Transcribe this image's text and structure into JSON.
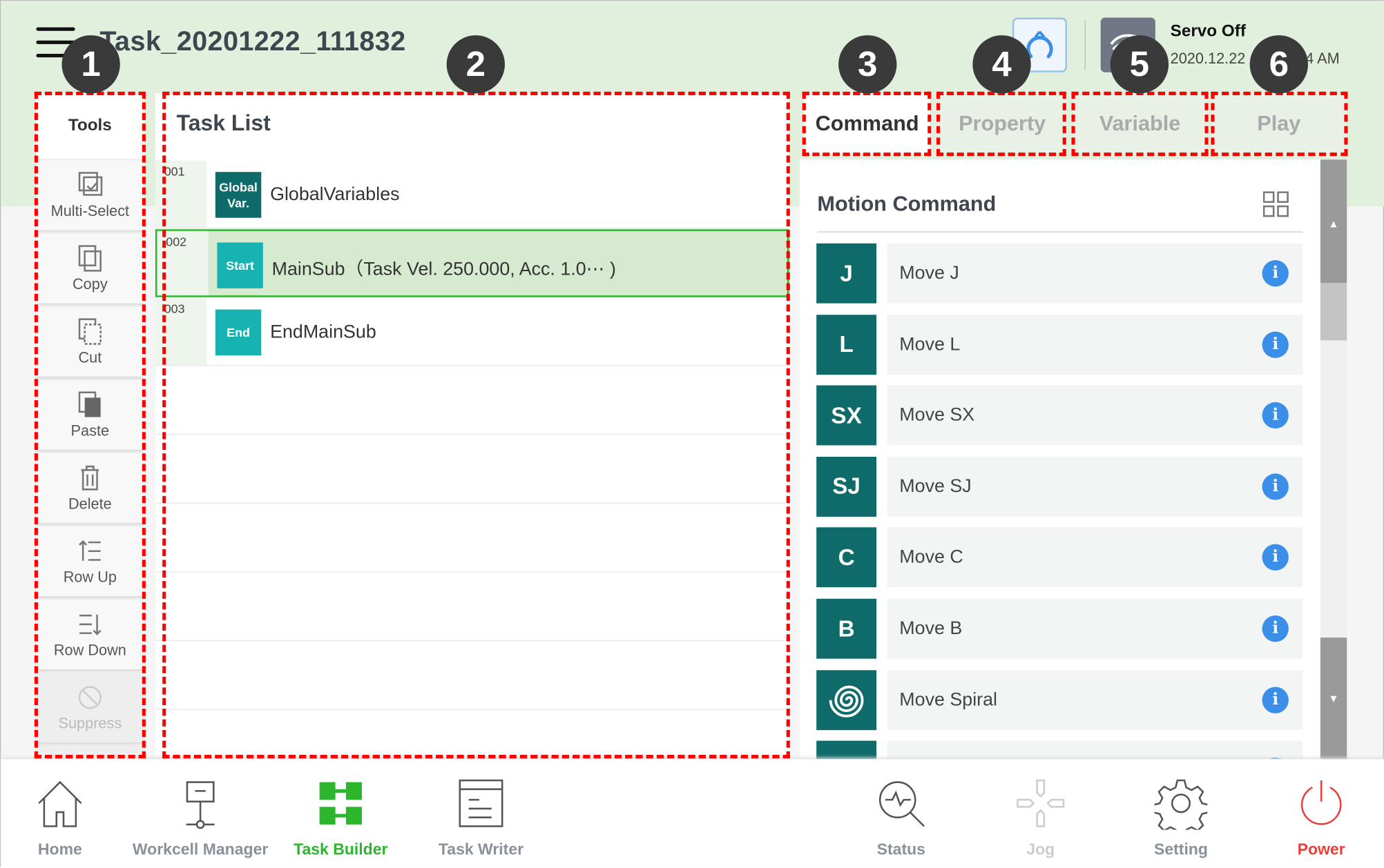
{
  "header": {
    "title": "Task_20201222_111832",
    "servo_status": "Servo Off",
    "date": "2020.12.22",
    "time_partial": "4 AM"
  },
  "annotations": [
    "1",
    "2",
    "3",
    "4",
    "5",
    "6"
  ],
  "tools": {
    "title": "Tools",
    "items": [
      {
        "label": "Multi-Select",
        "icon": "multi-select-icon"
      },
      {
        "label": "Copy",
        "icon": "copy-icon"
      },
      {
        "label": "Cut",
        "icon": "cut-icon"
      },
      {
        "label": "Paste",
        "icon": "paste-icon"
      },
      {
        "label": "Delete",
        "icon": "trash-icon"
      },
      {
        "label": "Row Up",
        "icon": "row-up-icon"
      },
      {
        "label": "Row Down",
        "icon": "row-down-icon"
      },
      {
        "label": "Suppress",
        "icon": "suppress-icon",
        "disabled": true
      }
    ]
  },
  "task_list": {
    "title": "Task List",
    "rows": [
      {
        "num": "001",
        "badge": "Global Var.",
        "badge_color": "#0f6b6a",
        "label": "GlobalVariables"
      },
      {
        "num": "002",
        "badge": "Start",
        "badge_color": "#17b3b3",
        "label": "MainSub（Task Vel. 250.000, Acc. 1.0⋯ )",
        "selected": true
      },
      {
        "num": "003",
        "badge": "End",
        "badge_color": "#17b3b3",
        "label": "EndMainSub"
      }
    ]
  },
  "tabs": [
    {
      "label": "Command",
      "active": true
    },
    {
      "label": "Property"
    },
    {
      "label": "Variable"
    },
    {
      "label": "Play"
    }
  ],
  "commands": {
    "title": "Motion Command",
    "items": [
      {
        "icon_text": "J",
        "label": "Move J"
      },
      {
        "icon_text": "L",
        "label": "Move L"
      },
      {
        "icon_text": "SX",
        "label": "Move SX"
      },
      {
        "icon_text": "SJ",
        "label": "Move SJ"
      },
      {
        "icon_text": "C",
        "label": "Move C"
      },
      {
        "icon_text": "B",
        "label": "Move B"
      },
      {
        "icon_text": "",
        "label": "Move Spiral",
        "icon": "spiral-icon"
      }
    ]
  },
  "nav": [
    {
      "label": "Home",
      "icon": "home-icon"
    },
    {
      "label": "Workcell Manager",
      "icon": "workcell-icon"
    },
    {
      "label": "Task Builder",
      "icon": "task-builder-icon",
      "active": true
    },
    {
      "label": "Task Writer",
      "icon": "task-writer-icon"
    },
    {
      "label": "Status",
      "icon": "status-icon"
    },
    {
      "label": "Jog",
      "icon": "jog-icon",
      "disabled": true
    },
    {
      "label": "Setting",
      "icon": "gear-icon"
    },
    {
      "label": "Power",
      "icon": "power-icon"
    }
  ],
  "colors": {
    "accent_green": "#2db52d",
    "teal": "#0f6b6a",
    "info_blue": "#3b8fe8",
    "power_red": "#e8413c",
    "annotation_red": "#ff0000"
  }
}
